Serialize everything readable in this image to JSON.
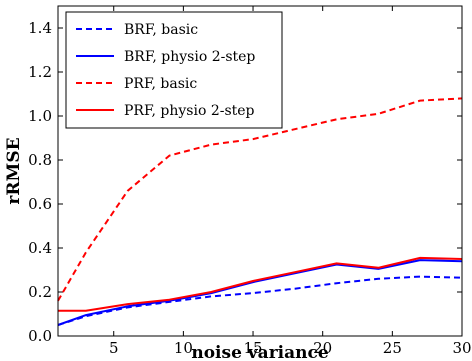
{
  "chart_data": {
    "type": "line",
    "xlabel": "noise variance",
    "ylabel": "rRMSE",
    "xlim": [
      1,
      30
    ],
    "ylim": [
      0,
      1.5
    ],
    "xticks": [
      5,
      10,
      15,
      20,
      25,
      30
    ],
    "yticks": [
      0.0,
      0.2,
      0.4,
      0.6,
      0.8,
      1.0,
      1.2,
      1.4
    ],
    "grid": false,
    "legend_position": "top-left",
    "series": [
      {
        "name": "BRF, basic",
        "color": "#0000ff",
        "dash": "dashed",
        "x": [
          1,
          3,
          6,
          9,
          12,
          15,
          18,
          21,
          24,
          27,
          30
        ],
        "y": [
          0.05,
          0.09,
          0.13,
          0.155,
          0.18,
          0.195,
          0.215,
          0.24,
          0.26,
          0.27,
          0.265
        ]
      },
      {
        "name": "BRF, physio 2-step",
        "color": "#0000ff",
        "dash": "solid",
        "x": [
          1,
          3,
          6,
          9,
          12,
          15,
          18,
          21,
          24,
          27,
          30
        ],
        "y": [
          0.05,
          0.095,
          0.135,
          0.16,
          0.195,
          0.245,
          0.285,
          0.325,
          0.305,
          0.345,
          0.34
        ]
      },
      {
        "name": "PRF, basic",
        "color": "#ff0000",
        "dash": "dashed",
        "x": [
          1,
          3,
          6,
          9,
          12,
          15,
          18,
          21,
          24,
          27,
          30
        ],
        "y": [
          0.16,
          0.38,
          0.66,
          0.82,
          0.87,
          0.895,
          0.94,
          0.985,
          1.01,
          1.07,
          1.08
        ]
      },
      {
        "name": "PRF, physio 2-step",
        "color": "#ff0000",
        "dash": "solid",
        "x": [
          1,
          3,
          6,
          9,
          12,
          15,
          18,
          21,
          24,
          27,
          30
        ],
        "y": [
          0.115,
          0.115,
          0.145,
          0.165,
          0.2,
          0.25,
          0.29,
          0.33,
          0.31,
          0.355,
          0.35
        ]
      }
    ]
  }
}
